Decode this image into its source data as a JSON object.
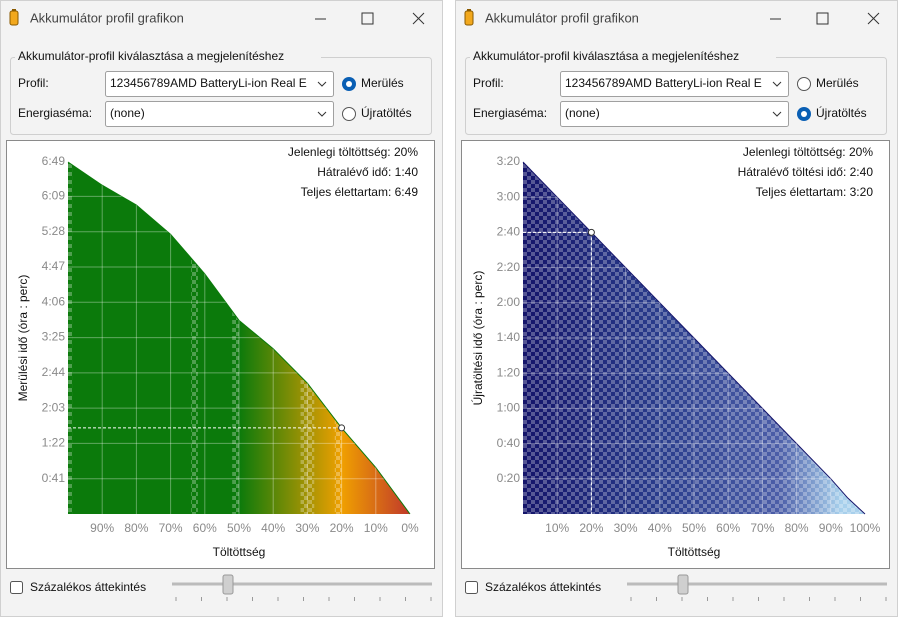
{
  "windows": [
    {
      "title": "Akkumulátor profil grafikon",
      "group_title": "Akkumulátor-profil kiválasztása a megjelenítéshez",
      "profile_label": "Profil:",
      "profile_value": "123456789AMD BatteryLi-ion Real E",
      "scheme_label": "Energiaséma:",
      "scheme_value": "(none)",
      "radios": [
        {
          "label": "Merülés",
          "checked": true
        },
        {
          "label": "Újratöltés",
          "checked": false
        }
      ],
      "info": [
        "Jelenlegi töltöttség: 20%",
        "Hátralévő idő: 1:40",
        "Teljes élettartam: 6:49"
      ],
      "checkbox_label": "Százalékos áttekintés",
      "chart_data": {
        "type": "area",
        "x_label": "Töltöttség",
        "y_label": "Merülési idő (óra : perc)",
        "xlim": [
          100,
          0
        ],
        "xticks": [
          {
            "value": 90,
            "label": "90%"
          },
          {
            "value": 80,
            "label": "80%"
          },
          {
            "value": 70,
            "label": "70%"
          },
          {
            "value": 60,
            "label": "60%"
          },
          {
            "value": 50,
            "label": "50%"
          },
          {
            "value": 40,
            "label": "40%"
          },
          {
            "value": 30,
            "label": "30%"
          },
          {
            "value": 20,
            "label": "20%"
          },
          {
            "value": 10,
            "label": "10%"
          },
          {
            "value": 0,
            "label": "0%"
          }
        ],
        "ylim": [
          0,
          409
        ],
        "yticks": [
          {
            "value": 41,
            "label": "0:41"
          },
          {
            "value": 82,
            "label": "1:22"
          },
          {
            "value": 123,
            "label": "2:03"
          },
          {
            "value": 164,
            "label": "2:44"
          },
          {
            "value": 205,
            "label": "3:25"
          },
          {
            "value": 246,
            "label": "4:06"
          },
          {
            "value": 287,
            "label": "4:47"
          },
          {
            "value": 328,
            "label": "5:28"
          },
          {
            "value": 369,
            "label": "6:09"
          },
          {
            "value": 409,
            "label": "6:49"
          }
        ],
        "x": [
          100,
          90,
          80,
          70,
          60,
          50,
          40,
          30,
          20,
          10,
          0
        ],
        "values": [
          409,
          382,
          359,
          325,
          279,
          225,
          192,
          152,
          100,
          54,
          0
        ],
        "marker": {
          "x": 20,
          "y": 100
        },
        "colors": [
          "#0b7a0b",
          "#0b7a0b",
          "#f0a000",
          "#c0392b"
        ],
        "grid": true
      }
    },
    {
      "title": "Akkumulátor profil grafikon",
      "group_title": "Akkumulátor-profil kiválasztása a megjelenítéshez",
      "profile_label": "Profil:",
      "profile_value": "123456789AMD BatteryLi-ion Real E",
      "scheme_label": "Energiaséma:",
      "scheme_value": "(none)",
      "radios": [
        {
          "label": "Merülés",
          "checked": false
        },
        {
          "label": "Újratöltés",
          "checked": true
        }
      ],
      "info": [
        "Jelenlegi töltöttség: 20%",
        "Hátralévő töltési idő: 2:40",
        "Teljes élettartam: 3:20"
      ],
      "checkbox_label": "Százalékos áttekintés",
      "chart_data": {
        "type": "area",
        "x_label": "Töltöttség",
        "y_label": "Újratöltési idő (óra : perc)",
        "xlim": [
          0,
          100
        ],
        "xticks": [
          {
            "value": 10,
            "label": "10%"
          },
          {
            "value": 20,
            "label": "20%"
          },
          {
            "value": 30,
            "label": "30%"
          },
          {
            "value": 40,
            "label": "40%"
          },
          {
            "value": 50,
            "label": "50%"
          },
          {
            "value": 60,
            "label": "60%"
          },
          {
            "value": 70,
            "label": "70%"
          },
          {
            "value": 80,
            "label": "80%"
          },
          {
            "value": 90,
            "label": "90%"
          },
          {
            "value": 100,
            "label": "100%"
          }
        ],
        "ylim": [
          0,
          200
        ],
        "yticks": [
          {
            "value": 20,
            "label": "0:20"
          },
          {
            "value": 40,
            "label": "0:40"
          },
          {
            "value": 60,
            "label": "1:00"
          },
          {
            "value": 80,
            "label": "1:20"
          },
          {
            "value": 100,
            "label": "1:40"
          },
          {
            "value": 120,
            "label": "2:00"
          },
          {
            "value": 140,
            "label": "2:20"
          },
          {
            "value": 160,
            "label": "2:40"
          },
          {
            "value": 180,
            "label": "3:00"
          },
          {
            "value": 200,
            "label": "3:20"
          }
        ],
        "x": [
          0,
          10,
          20,
          30,
          40,
          50,
          60,
          70,
          80,
          90,
          95,
          100
        ],
        "values": [
          200,
          180,
          160,
          140,
          120,
          100,
          80,
          60,
          40,
          20,
          9,
          0
        ],
        "marker": {
          "x": 20,
          "y": 160
        },
        "colors": [
          "#14146a",
          "#2a3d8c",
          "#4c5ea8",
          "#a8d0ec"
        ],
        "grid": true
      }
    }
  ]
}
